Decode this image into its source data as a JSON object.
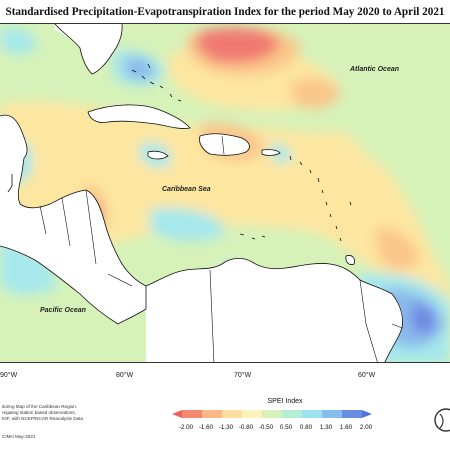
{
  "title": "Standardised Precipitation-Evapotranspiration Index for the period May 2020 to April 2021",
  "map": {
    "labels": {
      "atlantic": "Atlantic Ocean",
      "caribbean": "Caribbean Sea",
      "pacific": "Pacific Ocean"
    },
    "longitude_ticks": [
      "90°W",
      "80°W",
      "70°W",
      "60°W"
    ],
    "colors": {
      "land": "#ffffff",
      "neutral": "#d6f2b9",
      "dry_mild": "#fde6a0",
      "dry_moderate": "#fac68a",
      "dry_severe": "#f07a72",
      "wet_mild": "#a6e8ec",
      "wet_moderate": "#8ab8ec",
      "wet_severe": "#6e86e2"
    }
  },
  "notes": {
    "line1": "itoring Map of the Caribbean Region.",
    "line2": "regating station based observations,",
    "line3": "IOF, with NCEP/NCAR Reanalysis Data",
    "credit": "CIMH May-2021"
  },
  "legend": {
    "title": "SPEI Index",
    "labels": [
      "-2.00",
      "-1.60",
      "-1.30",
      "-0.80",
      "-0.50",
      "0.50",
      "0.80",
      "1.30",
      "1.60",
      "2.00"
    ],
    "colors": [
      "#ee5f5f",
      "#f38a70",
      "#f9b885",
      "#fddda0",
      "#fdf2bc",
      "#d6f2b9",
      "#b4eed6",
      "#9fe2ef",
      "#84bdee",
      "#6a8de4",
      "#5870dc"
    ]
  }
}
